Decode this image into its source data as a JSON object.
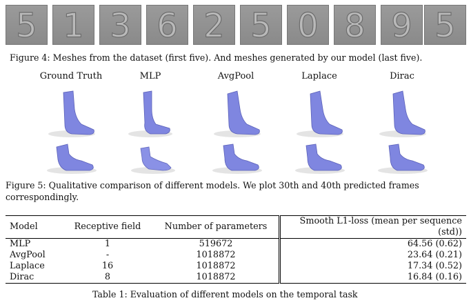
{
  "figure4": {
    "digits": [
      "5",
      "1",
      "3",
      "6",
      "2",
      "5",
      "0",
      "8",
      "9",
      "5"
    ],
    "caption": "Figure 4: Meshes from the dataset (first five). And meshes generated by our model (last five)."
  },
  "figure5": {
    "models": [
      "Ground Truth",
      "MLP",
      "AvgPool",
      "Laplace",
      "Dirac"
    ],
    "caption_line1": "Figure 5: Qualitative comparison of different models. We plot 30th and 40th predicted frames",
    "caption_line2": "correspondingly.",
    "mesh_color": "#7f86e0"
  },
  "table1": {
    "headers": [
      "Model",
      "Receptive field",
      "Number of parameters",
      "Smooth L1-loss (mean per sequence (std))"
    ],
    "rows": [
      [
        "MLP",
        "1",
        "519672",
        "64.56 (0.62)"
      ],
      [
        "AvgPool",
        "-",
        "1018872",
        "23.64 (0.21)"
      ],
      [
        "Laplace",
        "16",
        "1018872",
        "17.34 (0.52)"
      ],
      [
        "Dirac",
        "8",
        "1018872",
        "16.84 (0.16)"
      ]
    ],
    "caption": "Table 1: Evaluation of different models on the temporal task"
  }
}
